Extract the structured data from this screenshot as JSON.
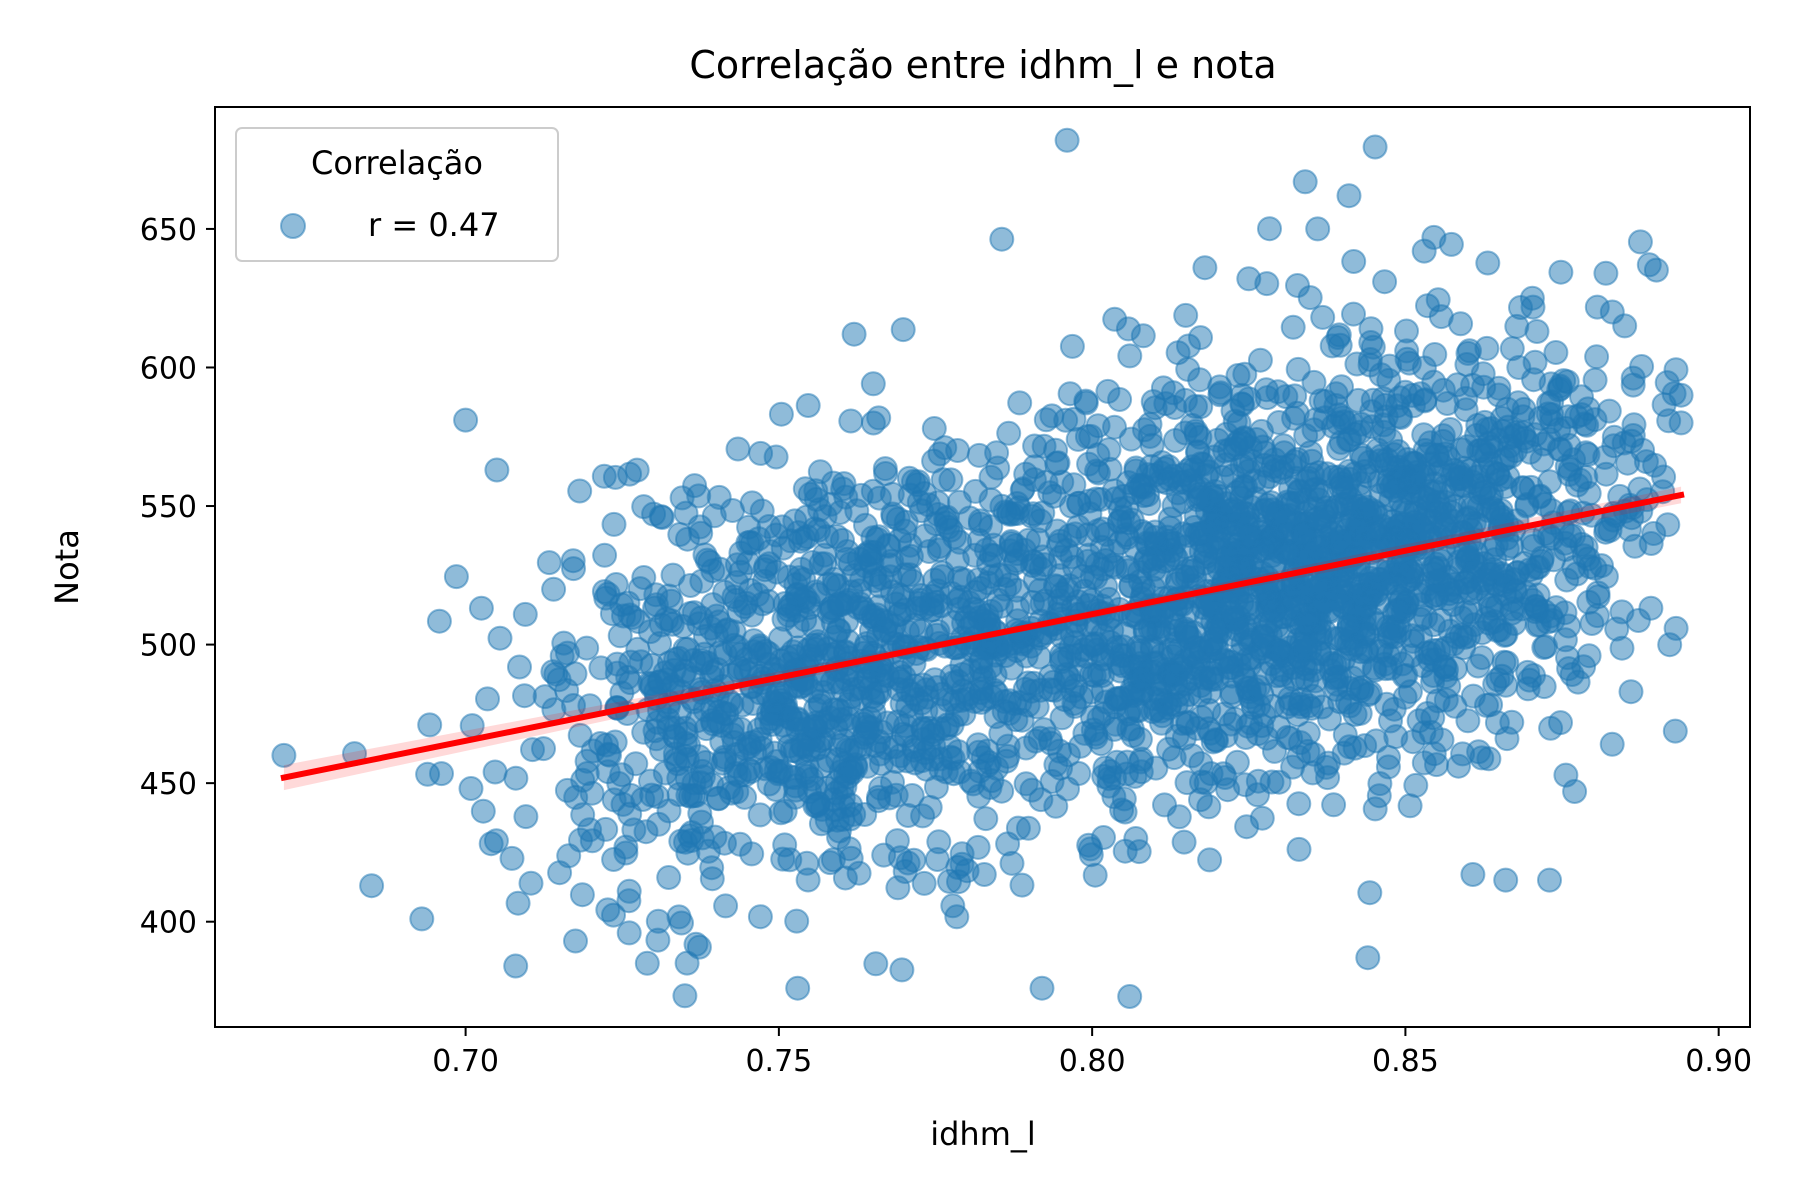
{
  "chart_data": {
    "type": "scatter",
    "title": "Correlação entre idhm_l e nota",
    "xlabel": "idhm_l",
    "ylabel": "Nota",
    "xlim": [
      0.66,
      0.905
    ],
    "ylim": [
      362,
      694
    ],
    "xticks": [
      0.7,
      0.75,
      0.8,
      0.85,
      0.9
    ],
    "xtick_labels": [
      "0.70",
      "0.75",
      "0.80",
      "0.85",
      "0.90"
    ],
    "yticks": [
      400,
      450,
      500,
      550,
      600,
      650
    ],
    "ytick_labels": [
      "400",
      "450",
      "500",
      "550",
      "600",
      "650"
    ],
    "grid": false,
    "legend": {
      "title": "Correlação",
      "placement": "top-left",
      "entries": [
        {
          "label": "r = 0.47",
          "color": "#1f77b4"
        }
      ]
    },
    "series": [
      {
        "name": "r = 0.47",
        "kind": "scatter",
        "color": "#1f77b4",
        "alpha": 0.5,
        "n_points": 3000,
        "generated_sample": {
          "clusters": [
            {
              "x_mean": 0.755,
              "x_sd": 0.022,
              "weight": 0.35
            },
            {
              "x_mean": 0.815,
              "x_sd": 0.02,
              "weight": 0.3
            },
            {
              "x_mean": 0.85,
              "x_sd": 0.02,
              "weight": 0.35
            }
          ],
          "x_range": [
            0.671,
            0.894
          ],
          "y_noise_sd": 38,
          "y_range": [
            373,
            682
          ]
        },
        "highlighted_points": [
          {
            "x": 0.796,
            "y": 682
          },
          {
            "x": 0.834,
            "y": 667
          },
          {
            "x": 0.841,
            "y": 662
          },
          {
            "x": 0.836,
            "y": 650
          },
          {
            "x": 0.853,
            "y": 642
          },
          {
            "x": 0.882,
            "y": 634
          },
          {
            "x": 0.818,
            "y": 636
          },
          {
            "x": 0.825,
            "y": 632
          },
          {
            "x": 0.762,
            "y": 612
          },
          {
            "x": 0.7,
            "y": 581
          },
          {
            "x": 0.705,
            "y": 563
          },
          {
            "x": 0.671,
            "y": 460
          },
          {
            "x": 0.685,
            "y": 413
          },
          {
            "x": 0.693,
            "y": 401
          },
          {
            "x": 0.708,
            "y": 384
          },
          {
            "x": 0.729,
            "y": 385
          },
          {
            "x": 0.753,
            "y": 376
          },
          {
            "x": 0.792,
            "y": 376
          },
          {
            "x": 0.806,
            "y": 373
          },
          {
            "x": 0.844,
            "y": 387
          },
          {
            "x": 0.866,
            "y": 415
          },
          {
            "x": 0.873,
            "y": 415
          },
          {
            "x": 0.877,
            "y": 447
          },
          {
            "x": 0.883,
            "y": 464
          },
          {
            "x": 0.886,
            "y": 483
          },
          {
            "x": 0.894,
            "y": 590
          },
          {
            "x": 0.894,
            "y": 580
          },
          {
            "x": 0.885,
            "y": 615
          },
          {
            "x": 0.871,
            "y": 613
          }
        ]
      },
      {
        "name": "regression",
        "kind": "line",
        "color": "#ff0000",
        "x": [
          0.671,
          0.894
        ],
        "y": [
          452,
          554
        ]
      }
    ]
  }
}
